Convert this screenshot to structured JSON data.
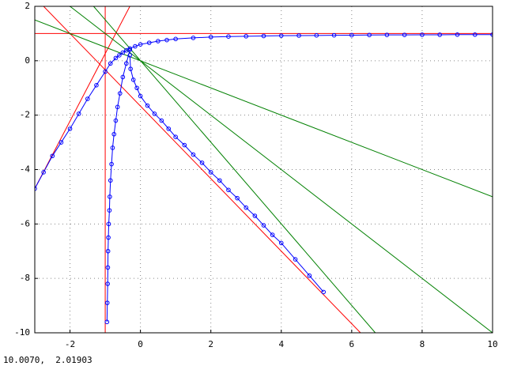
{
  "chart_data": {
    "type": "line",
    "xlim": [
      -3,
      10
    ],
    "ylim": [
      -10,
      2
    ],
    "xticks": [
      -2,
      0,
      2,
      4,
      6,
      8,
      10
    ],
    "yticks": [
      -10,
      -8,
      -6,
      -4,
      -2,
      0,
      2
    ],
    "grid": true,
    "series": [
      {
        "color": "#ff0000",
        "marker": "none",
        "x": [
          -3,
          10
        ],
        "values": [
          1,
          1
        ]
      },
      {
        "color": "#ff0000",
        "marker": "none",
        "x": [
          -1,
          -1
        ],
        "values": [
          -10,
          2
        ]
      },
      {
        "color": "#ff0000",
        "marker": "none",
        "x": [
          -2.75,
          6.25
        ],
        "values": [
          2,
          -10
        ]
      },
      {
        "color": "#ff0000",
        "marker": "none",
        "x": [
          -3,
          -0.3
        ],
        "values": [
          -4.7,
          2
        ]
      },
      {
        "color": "#008000",
        "marker": "none",
        "x": [
          -3,
          10
        ],
        "values": [
          1.5,
          -5
        ]
      },
      {
        "color": "#008000",
        "marker": "none",
        "x": [
          -2,
          10
        ],
        "values": [
          2,
          -10
        ]
      },
      {
        "color": "#008000",
        "marker": "none",
        "x": [
          -1.33,
          6.67
        ],
        "values": [
          2,
          -10
        ]
      },
      {
        "color": "#0000ff",
        "marker": "circle",
        "x": [
          -3,
          -2.75,
          -2.5,
          -2.25,
          -2,
          -1.75,
          -1.5,
          -1.25,
          -1,
          -0.85,
          -0.7,
          -0.6,
          -0.5,
          -0.4,
          -0.3,
          -0.15,
          0,
          0.25,
          0.5,
          0.75,
          1,
          1.5,
          2,
          2.5,
          3,
          3.5,
          4,
          4.5,
          5,
          5.5,
          6,
          6.5,
          7,
          7.5,
          8,
          8.5,
          9,
          9.5,
          10
        ],
        "values": [
          -4.7,
          -4.1,
          -3.5,
          -3,
          -2.5,
          -1.95,
          -1.4,
          -0.9,
          -0.4,
          -0.1,
          0.1,
          0.2,
          0.3,
          0.38,
          0.45,
          0.53,
          0.6,
          0.66,
          0.72,
          0.76,
          0.8,
          0.84,
          0.87,
          0.89,
          0.9,
          0.91,
          0.92,
          0.925,
          0.93,
          0.935,
          0.94,
          0.945,
          0.95,
          0.95,
          0.955,
          0.955,
          0.96,
          0.96,
          0.96
        ]
      },
      {
        "color": "#0000ff",
        "marker": "circle",
        "x": [
          -0.95,
          -0.94,
          -0.93,
          -0.925,
          -0.92,
          -0.91,
          -0.9,
          -0.88,
          -0.87,
          -0.85,
          -0.82,
          -0.79,
          -0.75,
          -0.7,
          -0.65,
          -0.58,
          -0.5,
          -0.4,
          -0.3
        ],
        "values": [
          -9.6,
          -8.9,
          -8.2,
          -7.6,
          -7,
          -6.5,
          -6,
          -5.5,
          -5,
          -4.4,
          -3.8,
          -3.2,
          -2.7,
          -2.2,
          -1.7,
          -1.2,
          -0.6,
          -0.1,
          0.4
        ]
      },
      {
        "color": "#0000ff",
        "marker": "circle",
        "x": [
          -0.3,
          -0.28,
          -0.2,
          -0.1,
          0,
          0.2,
          0.4,
          0.6,
          0.8,
          1,
          1.25,
          1.5,
          1.75,
          2,
          2.25,
          2.5,
          2.75,
          3,
          3.25,
          3.5,
          3.75,
          4,
          4.4,
          4.8,
          5.2
        ],
        "values": [
          0.2,
          -0.3,
          -0.7,
          -1,
          -1.3,
          -1.65,
          -1.95,
          -2.2,
          -2.5,
          -2.8,
          -3.1,
          -3.45,
          -3.75,
          -4.1,
          -4.4,
          -4.75,
          -5.05,
          -5.4,
          -5.7,
          -6.05,
          -6.4,
          -6.7,
          -7.3,
          -7.9,
          -8.5
        ]
      }
    ]
  },
  "status_bar": "10.0070,  2.01903"
}
